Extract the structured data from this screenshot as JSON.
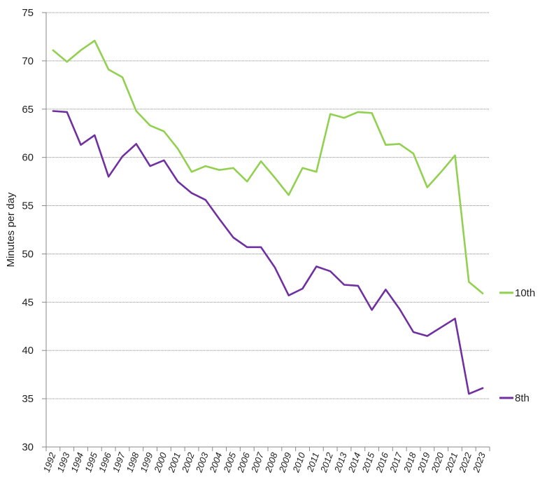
{
  "chart_data": {
    "type": "line",
    "title": "",
    "xlabel": "",
    "ylabel": "Minutes per day",
    "ylim": [
      30,
      75
    ],
    "yticks": [
      30,
      35,
      40,
      45,
      50,
      55,
      60,
      65,
      70,
      75
    ],
    "grid": true,
    "legend_placement": "right",
    "x": [
      "1992",
      "1993",
      "1994",
      "1995",
      "1996",
      "1997",
      "1998",
      "1999",
      "2000",
      "2001",
      "2002",
      "2003",
      "2004",
      "2005",
      "2006",
      "2007",
      "2008",
      "2009",
      "2010",
      "2011",
      "2012",
      "2013",
      "2014",
      "2015",
      "2016",
      "2017",
      "2018",
      "2019",
      "2020",
      "2021",
      "2022",
      "2023"
    ],
    "series": [
      {
        "name": "10th",
        "color": "#92d050",
        "values": [
          71.1,
          69.9,
          71.1,
          72.1,
          69.1,
          68.3,
          64.8,
          63.3,
          62.7,
          60.9,
          58.5,
          59.1,
          58.7,
          58.9,
          57.5,
          59.6,
          57.9,
          56.1,
          58.9,
          58.5,
          64.5,
          64.1,
          64.7,
          64.6,
          61.3,
          61.4,
          60.4,
          56.9,
          58.5,
          60.2,
          47.1,
          45.9
        ]
      },
      {
        "name": "8th",
        "color": "#7030a0",
        "values": [
          64.8,
          64.7,
          61.3,
          62.3,
          58.0,
          60.1,
          61.4,
          59.1,
          59.7,
          57.5,
          56.3,
          55.6,
          53.6,
          51.7,
          50.7,
          50.7,
          48.6,
          45.7,
          46.4,
          48.7,
          48.2,
          46.8,
          46.7,
          44.2,
          46.3,
          44.3,
          41.9,
          41.5,
          42.4,
          43.3,
          35.5,
          36.1
        ]
      }
    ]
  }
}
